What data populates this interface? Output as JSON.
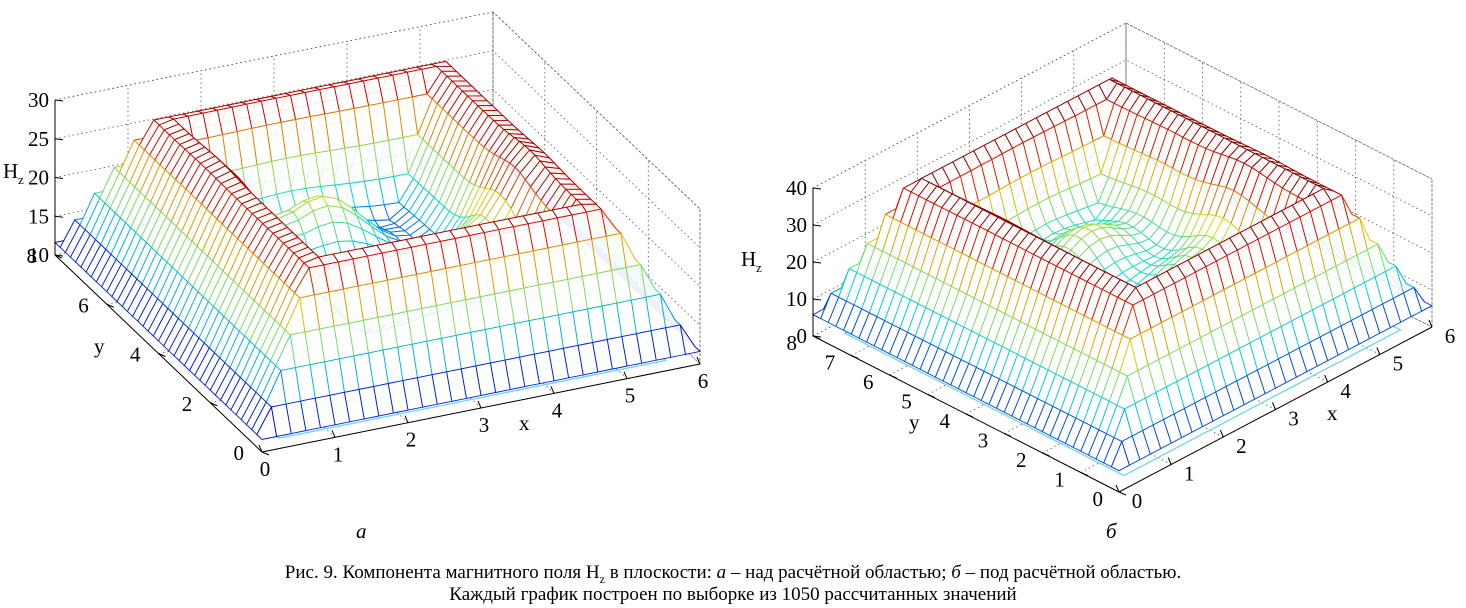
{
  "plots": {
    "a": {
      "type": "surface3d",
      "panel_label": "а",
      "z_label": "H",
      "z_label_sub": "z",
      "x_label": "x",
      "y_label": "y",
      "z_ticks": [
        "10",
        "15",
        "20",
        "25",
        "30"
      ],
      "x_ticks": [
        "0",
        "1",
        "2",
        "3",
        "4",
        "5",
        "6"
      ],
      "y_ticks": [
        "0",
        "2",
        "4",
        "6",
        "8"
      ],
      "zlim": [
        10,
        30
      ],
      "xlim": [
        0,
        6
      ],
      "ylim": [
        0,
        8
      ],
      "grid": true
    },
    "b": {
      "type": "surface3d",
      "panel_label": "б",
      "z_label": "H",
      "z_label_sub": "z",
      "x_label": "x",
      "y_label": "y",
      "z_ticks": [
        "0",
        "10",
        "20",
        "30",
        "40"
      ],
      "x_ticks": [
        "0",
        "1",
        "2",
        "3",
        "4",
        "5",
        "6"
      ],
      "y_ticks": [
        "0",
        "1",
        "2",
        "3",
        "4",
        "5",
        "6",
        "7",
        "8"
      ],
      "zlim": [
        0,
        40
      ],
      "xlim": [
        0,
        6
      ],
      "ylim": [
        0,
        8
      ],
      "grid": true
    }
  },
  "caption": {
    "line1_prefix": "Рис. 9. Компонента магнитного поля H",
    "line1_sub": "z",
    "line1_mid": " в плоскости: ",
    "label_a": "а",
    "text_a": " – над расчётной областью; ",
    "label_b": "б",
    "text_b": " – под расчётной областью.",
    "line2": "Каждый график построен по выборке из 1050 рассчитанных значений"
  }
}
